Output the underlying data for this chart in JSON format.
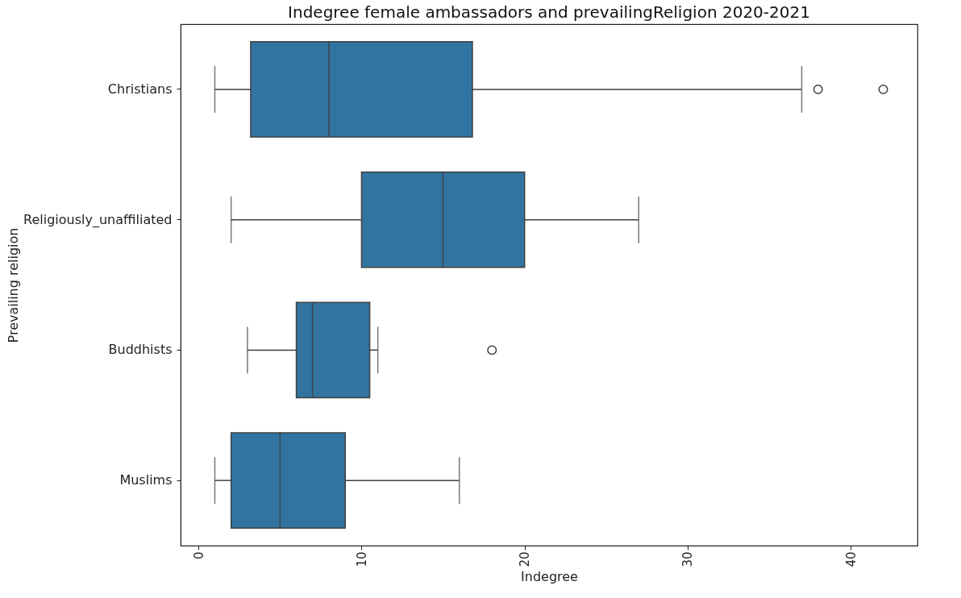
{
  "chart_data": {
    "type": "box",
    "orientation": "horizontal",
    "title": "Indegree female ambassadors and prevailingReligion 2020-2021",
    "xlabel": "Indegree",
    "ylabel": "Prevailing religion",
    "categories": [
      "Christians",
      "Religiously_unaffiliated",
      "Buddhists",
      "Muslims"
    ],
    "boxes": [
      {
        "low": 1,
        "q1": 3.2,
        "median": 8,
        "q3": 16.8,
        "high": 37,
        "outliers": [
          38,
          42
        ]
      },
      {
        "low": 2,
        "q1": 10,
        "median": 15,
        "q3": 20,
        "high": 27
      },
      {
        "low": 3,
        "q1": 6,
        "median": 7,
        "q3": 10.5,
        "high": 11,
        "outliers": [
          18
        ]
      },
      {
        "low": 1,
        "q1": 2,
        "median": 5,
        "q3": 9,
        "high": 16
      }
    ],
    "color": "#3274a1",
    "xlim": [
      -1.1,
      44.1
    ],
    "xticks": [
      0,
      10,
      20,
      30,
      40
    ],
    "grid": false
  }
}
